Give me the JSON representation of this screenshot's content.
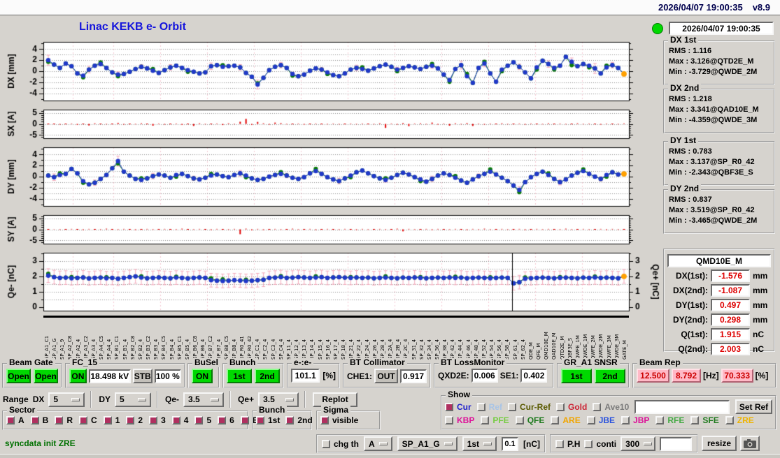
{
  "titlebar": {
    "datetime": "2026/04/07 19:00:35",
    "version": "v8.9"
  },
  "header": {
    "title": "Linac KEKB e- Orbit",
    "status_datetime": "2026/04/07 19:00:35"
  },
  "stats": [
    {
      "title": "DX 1st",
      "rows": [
        "RMS :  1.116",
        "Max :  3.126@QTD2E_M",
        "Min :  -3.729@QWDE_2M"
      ]
    },
    {
      "title": "DX 2nd",
      "rows": [
        "RMS :  1.218",
        "Max :  3.341@QAD10E_M",
        "Min :  -4.359@QWDE_3M"
      ]
    },
    {
      "title": "DY 1st",
      "rows": [
        "RMS :  0.783",
        "Max :  3.137@SP_R0_42",
        "Min :  -2.343@QBF3E_S"
      ]
    },
    {
      "title": "DY 2nd",
      "rows": [
        "RMS :  0.837",
        "Max :  3.519@SP_R0_42",
        "Min :  -3.465@QWDE_2M"
      ]
    }
  ],
  "monitor": {
    "title": "QMD10E_M",
    "rows": [
      {
        "label": "DX(1st):",
        "value": "-1.576",
        "unit": "mm"
      },
      {
        "label": "DX(2nd):",
        "value": "-1.087",
        "unit": "mm"
      },
      {
        "label": "DY(1st):",
        "value": "0.497",
        "unit": "mm"
      },
      {
        "label": "DY(2nd):",
        "value": "0.298",
        "unit": "mm"
      },
      {
        "label": "Q(1st):",
        "value": "1.915",
        "unit": "nC"
      },
      {
        "label": "Q(2nd):",
        "value": "2.003",
        "unit": "nC"
      }
    ]
  },
  "plot_vlines": [
    0.05,
    0.12,
    0.2,
    0.28,
    0.36,
    0.44,
    0.52,
    0.6,
    0.68,
    0.76,
    0.84,
    0.92
  ],
  "chart_data": {
    "dx": {
      "type": "scatter",
      "ylabel": "DX [mm]",
      "ylim": [
        -5.3,
        5.3
      ],
      "yticks": [
        4,
        2,
        0,
        -2,
        -4
      ],
      "grid": [
        -4,
        -3,
        -2,
        -1,
        0,
        1,
        2,
        3,
        4
      ],
      "minor": 1,
      "orange_last": true,
      "values": [
        2.0,
        1.2,
        0.6,
        1.4,
        0.9,
        -0.4,
        -0.8,
        0.3,
        1.0,
        1.3,
        0.6,
        -0.2,
        -0.6,
        -0.5,
        -0.1,
        0.4,
        0.8,
        0.5,
        0.1,
        -0.3,
        0.2,
        0.7,
        1.0,
        0.6,
        0.2,
        -0.1,
        -0.4,
        -0.2,
        0.9,
        1.1,
        0.8,
        0.9,
        1.0,
        0.7,
        -0.3,
        -1.0,
        -2.4,
        -1.2,
        0.2,
        0.8,
        1.1,
        0.6,
        -0.5,
        -0.9,
        -0.6,
        0.1,
        0.5,
        0.3,
        -0.2,
        -0.7,
        -0.9,
        -0.4,
        0.3,
        0.6,
        0.4,
        0.1,
        0.5,
        0.9,
        1.2,
        0.8,
        0.3,
        0.6,
        0.9,
        0.7,
        0.4,
        0.8,
        1.0,
        0.5,
        -0.6,
        -1.6,
        0.4,
        1.1,
        -0.9,
        -2.1,
        0.6,
        1.4,
        -0.4,
        -1.9,
        0.3,
        1.0,
        1.6,
        0.8,
        -0.2,
        -1.3,
        0.7,
        1.9,
        1.3,
        0.6,
        1.0,
        2.6,
        1.7,
        0.9,
        1.3,
        1.0,
        0.5,
        -0.4,
        0.7,
        1.1,
        0.6,
        -0.5
      ],
      "green_offsets": [
        [
          0,
          -0.3
        ],
        [
          6,
          -0.3
        ],
        [
          9,
          0.3
        ],
        [
          12,
          -0.3
        ],
        [
          18,
          0.3
        ],
        [
          24,
          -0.3
        ],
        [
          30,
          0.3
        ],
        [
          36,
          0.2
        ],
        [
          42,
          -0.3
        ],
        [
          48,
          -0.3
        ],
        [
          54,
          0.3
        ],
        [
          60,
          -0.3
        ],
        [
          66,
          0.3
        ],
        [
          69,
          -0.3
        ],
        [
          72,
          0.4
        ],
        [
          75,
          0.3
        ],
        [
          78,
          -0.3
        ],
        [
          84,
          -0.4
        ],
        [
          87,
          -0.3
        ],
        [
          90,
          -0.6
        ],
        [
          93,
          -0.3
        ],
        [
          96,
          0.3
        ]
      ],
      "errorbars": [
        [
          0,
          0.9
        ],
        [
          7,
          0.6
        ],
        [
          12,
          0.5
        ],
        [
          16,
          0.4
        ],
        [
          21,
          0.5
        ],
        [
          28,
          0.6
        ],
        [
          33,
          0.5
        ],
        [
          36,
          0.8
        ],
        [
          40,
          0.5
        ],
        [
          47,
          0.4
        ],
        [
          53,
          0.5
        ],
        [
          60,
          0.4
        ],
        [
          66,
          0.5
        ],
        [
          71,
          0.7
        ],
        [
          75,
          0.6
        ],
        [
          81,
          0.5
        ],
        [
          86,
          0.6
        ],
        [
          90,
          0.7
        ],
        [
          94,
          0.9
        ],
        [
          97,
          0.5
        ]
      ]
    },
    "sx": {
      "type": "bar",
      "ylabel": "SX [A]",
      "ylim": [
        -6.5,
        6.5
      ],
      "yticks": [
        5,
        0,
        -5
      ],
      "grid": [
        5,
        0,
        -5
      ],
      "minor": 1,
      "values": [
        0,
        0,
        -0.3,
        0,
        0.2,
        -0.4,
        0,
        -0.7,
        0.3,
        0,
        -0.2,
        0,
        0.5,
        -0.3,
        0,
        -0.2,
        0.3,
        0,
        -0.8,
        0.2,
        -0.3,
        0,
        0.2,
        -0.4,
        0,
        -0.9,
        0.3,
        -0.2,
        0,
        0.2,
        -0.5,
        0.3,
        -0.2,
        1.0,
        2.3,
        -0.4,
        0.9,
        0.3,
        -0.3,
        0.6,
        0.4,
        -0.2,
        0,
        0.2,
        -0.3,
        0,
        0.2,
        0,
        -0.2,
        0.2,
        -0.2,
        0,
        0.2,
        -0.2,
        0.2,
        0,
        -0.2,
        0.3,
        -1.8,
        0.2,
        -0.3,
        0.4,
        -1.0,
        0.2,
        0.3,
        -0.2,
        0.6,
        -0.3,
        0.2,
        -0.8,
        0.3,
        -0.2,
        0.4,
        -0.9,
        0.2,
        -0.3,
        0.2,
        0,
        0.3,
        -0.2,
        0,
        0.2,
        -0.3,
        0.2,
        0,
        -0.2,
        0.3,
        0,
        0.2,
        -0.2,
        0,
        0.3,
        -0.2,
        0.2,
        0,
        -0.3,
        0.2,
        0,
        -0.2,
        0.2
      ]
    },
    "dy": {
      "type": "scatter",
      "ylabel": "DY [mm]",
      "ylim": [
        -5.3,
        5.3
      ],
      "yticks": [
        4,
        2,
        0,
        -2,
        -4
      ],
      "grid": [
        -4,
        -3,
        -2,
        -1,
        0,
        1,
        2,
        3,
        4
      ],
      "minor": 1,
      "orange_last": true,
      "values": [
        0.2,
        -0.1,
        0.3,
        0.5,
        1.4,
        0.6,
        -0.8,
        -1.4,
        -1.1,
        -0.4,
        0.3,
        1.5,
        2.8,
        0.9,
        0.2,
        -0.4,
        -0.6,
        -0.3,
        0.1,
        0.4,
        0.2,
        -0.2,
        0.3,
        0.5,
        0.1,
        -0.3,
        -0.5,
        -0.2,
        0.2,
        0.4,
        0.1,
        -0.1,
        0.3,
        0.6,
        0.2,
        -0.3,
        -0.6,
        -0.4,
        0.0,
        0.3,
        0.5,
        0.2,
        -0.2,
        -0.4,
        -0.1,
        0.6,
        1.0,
        0.5,
        -0.1,
        -0.5,
        -0.8,
        -0.3,
        0.2,
        0.8,
        1.1,
        0.6,
        0.1,
        -0.3,
        -0.6,
        -0.2,
        0.3,
        0.7,
        0.4,
        -0.1,
        -0.5,
        -0.9,
        -0.4,
        0.2,
        0.6,
        0.3,
        -0.2,
        -0.7,
        -1.1,
        -0.5,
        0.1,
        0.5,
        0.9,
        0.4,
        -0.2,
        -0.8,
        -1.6,
        -2.4,
        -1.0,
        -0.1,
        0.5,
        0.9,
        0.3,
        -0.4,
        -1.0,
        -0.5,
        0.2,
        0.7,
        1.0,
        0.5,
        0.0,
        -0.4,
        0.3,
        0.8,
        0.4,
        0.5
      ],
      "green_offsets": [
        [
          2,
          0.3
        ],
        [
          6,
          -0.3
        ],
        [
          12,
          -0.4
        ],
        [
          16,
          0.3
        ],
        [
          22,
          -0.3
        ],
        [
          28,
          0.3
        ],
        [
          34,
          -0.3
        ],
        [
          40,
          0.3
        ],
        [
          46,
          0.4
        ],
        [
          52,
          -0.3
        ],
        [
          58,
          0.3
        ],
        [
          64,
          -0.3
        ],
        [
          70,
          0.3
        ],
        [
          76,
          0.4
        ],
        [
          81,
          -0.4
        ],
        [
          86,
          0.3
        ],
        [
          92,
          0.3
        ],
        [
          96,
          -0.3
        ]
      ],
      "errorbars": [
        [
          1,
          0.6
        ],
        [
          8,
          0.5
        ],
        [
          12,
          0.9
        ],
        [
          18,
          0.5
        ],
        [
          25,
          0.4
        ],
        [
          33,
          0.5
        ],
        [
          41,
          0.4
        ],
        [
          50,
          0.5
        ],
        [
          58,
          0.4
        ],
        [
          66,
          0.5
        ],
        [
          74,
          0.4
        ],
        [
          81,
          0.6
        ],
        [
          88,
          0.5
        ],
        [
          95,
          0.4
        ]
      ]
    },
    "sy": {
      "type": "bar",
      "ylabel": "SY [A]",
      "ylim": [
        -6.5,
        6.5
      ],
      "yticks": [
        5,
        0,
        -5
      ],
      "grid": [
        5,
        0,
        -5
      ],
      "minor": 1,
      "values": [
        0,
        0.1,
        -0.2,
        0,
        0.2,
        0,
        -0.3,
        0.2,
        0,
        -0.2,
        0.3,
        0,
        -0.2,
        0.2,
        0,
        -0.3,
        0,
        0.2,
        -0.2,
        0,
        0.2,
        0,
        -0.2,
        0.3,
        0,
        -0.2,
        0.2,
        0,
        -0.3,
        0.2,
        0,
        -0.2,
        0.2,
        -2.2,
        0.3,
        -0.4,
        0.2,
        -0.3,
        0,
        0.2,
        -0.2,
        0,
        0.3,
        -0.2,
        0,
        0.2,
        -0.3,
        0,
        0.2,
        0,
        -0.2,
        0.2,
        0,
        -0.3,
        0.2,
        -0.2,
        0,
        0.2,
        -0.2,
        0,
        0.3,
        -0.9,
        0.2,
        -0.2,
        0,
        0.2,
        -0.3,
        0.2,
        0,
        -0.2,
        0.2,
        0,
        -0.3,
        0.2,
        -0.2,
        0.3,
        -0.2,
        0,
        0.2,
        -0.2,
        0,
        0.2,
        -0.3,
        0,
        0.2,
        -0.2,
        0.2,
        0,
        -0.2,
        0.3,
        -0.2,
        0,
        0.2,
        -0.2,
        0,
        0.2,
        -0.3,
        0.2,
        -0.2,
        0
      ]
    },
    "qe": {
      "type": "scatter",
      "ylabel": "Qe- [nC]",
      "ylabel_right": "Qe+ [nC]",
      "ylim": [
        -0.25,
        3.55
      ],
      "yticks": [
        3,
        2,
        1,
        0
      ],
      "grid": [
        0.5,
        1,
        1.5,
        2,
        2.5,
        3
      ],
      "minor": 0.5,
      "right_labels": true,
      "err_half": 0.45,
      "cursor_frac": 0.8,
      "orange_last": true,
      "values": [
        2.05,
        1.95,
        1.9,
        1.92,
        1.88,
        1.9,
        1.93,
        1.87,
        1.9,
        1.92,
        1.88,
        1.9,
        1.85,
        1.9,
        1.95,
        2.0,
        1.92,
        1.88,
        1.9,
        1.93,
        1.9,
        1.88,
        1.92,
        1.9,
        1.87,
        1.9,
        1.93,
        1.9,
        1.75,
        1.72,
        1.7,
        1.72,
        1.75,
        1.73,
        1.7,
        1.72,
        1.75,
        1.78,
        1.9,
        1.92,
        1.95,
        1.9,
        1.92,
        1.95,
        1.93,
        1.9,
        1.92,
        1.95,
        1.9,
        1.93,
        1.95,
        1.92,
        1.9,
        1.93,
        1.9,
        1.92,
        1.88,
        1.9,
        1.92,
        1.9,
        1.88,
        1.92,
        1.9,
        1.93,
        1.9,
        1.88,
        1.9,
        1.92,
        1.9,
        1.93,
        1.9,
        1.92,
        1.88,
        1.9,
        1.92,
        1.9,
        1.88,
        1.9,
        1.92,
        1.9,
        1.55,
        1.62,
        1.85,
        1.88,
        1.9,
        1.92,
        1.9,
        1.88,
        1.9,
        1.92,
        1.9,
        1.88,
        1.92,
        1.9,
        1.93,
        1.9,
        1.92,
        1.9,
        1.88,
        2.0
      ],
      "green_offsets": [
        [
          0,
          0.12
        ],
        [
          4,
          0.08
        ],
        [
          10,
          0.06
        ],
        [
          16,
          0.08
        ],
        [
          22,
          0.06
        ],
        [
          28,
          0.12
        ],
        [
          30,
          0.1
        ],
        [
          34,
          0.08
        ],
        [
          40,
          0.06
        ],
        [
          46,
          0.08
        ],
        [
          52,
          0.06
        ],
        [
          58,
          0.08
        ],
        [
          64,
          0.06
        ],
        [
          70,
          0.08
        ],
        [
          76,
          0.06
        ],
        [
          82,
          0.08
        ],
        [
          88,
          0.06
        ],
        [
          94,
          0.06
        ]
      ]
    }
  },
  "xaxis_labels": [
    "SP_A1_C1",
    "SP_A1_G",
    "SP_A1_9",
    "SP_A2_C8",
    "SP_A2_4",
    "SP_A3_C2",
    "SP_A3_4",
    "SP_A4_C5",
    "SP_A4_4",
    "SP_B1_C1",
    "SP_B1_4",
    "SP_B2_C8",
    "SP_B2_4",
    "SP_B3_C2",
    "SP_B3_4",
    "SP_B4_C5",
    "SP_B4_4",
    "SP_B5_C1",
    "SP_B5_4",
    "SP_B6_C8",
    "SP_B6_4",
    "SP_B7_C2",
    "SP_B7_4",
    "SP_B8_C5",
    "SP_B8_4",
    "SP_R0_41",
    "SP_R0_42",
    "SP_C1_4",
    "SP_C2_4",
    "SP_C3_4",
    "SP_C4_4",
    "SP_11_4",
    "SP_12_4",
    "SP_13_4",
    "SP_14_4",
    "SP_15_4",
    "SP_16_4",
    "SP_17_4",
    "SP_18_4",
    "SP_21_4",
    "SP_22_4",
    "SP_24_4",
    "SP_26_4",
    "SP_28_4",
    "SP_2A_4",
    "SP_2B_4",
    "SP_2C_4",
    "SP_31_4",
    "SP_32_4",
    "SP_34_4",
    "SP_36_4",
    "SP_38_4",
    "SP_42_4",
    "SP_44_4",
    "SP_46_4",
    "SP_48_4",
    "SP_52_4",
    "SP_54_4",
    "SP_56_4",
    "SP_58_4",
    "SP_61_4",
    "SP_62_4",
    "QDE_M",
    "QFE_M",
    "QMD10E_M",
    "QAD10E_M",
    "QTD2E_M",
    "QBF3E_S",
    "QWFE_1M",
    "QWDE_1M",
    "QWFE_2M",
    "QWDE_2M",
    "QWFE_3M",
    "QWDE_3M",
    "GATE_M"
  ],
  "row1": {
    "beam_gate": {
      "legend": "Beam Gate",
      "buttons": [
        "Open",
        "Open"
      ]
    },
    "fc15": {
      "legend": "FC_15",
      "on": "ON",
      "kv": "18.498 kV",
      "stb": "STB",
      "pct": "100 %"
    },
    "busel": {
      "legend": "BuSel",
      "on": "ON"
    },
    "bunch": {
      "legend": "Bunch",
      "b1": "1st",
      "b2": "2nd"
    },
    "ee": {
      "legend": "e-:e-",
      "value": "101.1",
      "unit": "[%]"
    },
    "bt_collimator": {
      "legend": "BT Collimator",
      "che1_label": "CHE1:",
      "che1_state": "OUT",
      "che1_value": "0.917"
    },
    "bt_lossmonitor": {
      "legend": "BT LossMonitor",
      "qxd2e_label": "QXD2E:",
      "qxd2e_value": "0.006",
      "se1_label": "SE1:",
      "se1_value": "0.402"
    },
    "gr_a1": {
      "legend": "GR_A1 SNSR",
      "b1": "1st",
      "b2": "2nd"
    },
    "beam_rep": {
      "legend": "Beam Rep",
      "v1": "12.500",
      "v2": "8.792",
      "hz": "[Hz]",
      "v3": "70.333",
      "pct": "[%]"
    }
  },
  "range_bar": {
    "label": "Range",
    "dx_label": "DX",
    "dx": "5",
    "dy_label": "DY",
    "dy": "5",
    "qem_label": "Qe-",
    "qem": "3.5",
    "qep_label": "Qe+",
    "qep": "3.5",
    "replot": "Replot"
  },
  "sector": {
    "legend": "Sector",
    "items": [
      "A",
      "B",
      "R",
      "C",
      "1",
      "2",
      "3",
      "4",
      "5",
      "6",
      "BT"
    ]
  },
  "bunch2": {
    "legend": "Bunch",
    "items": [
      "1st",
      "2nd"
    ]
  },
  "sigma": {
    "legend": "Sigma",
    "items": [
      "visible"
    ]
  },
  "show": {
    "legend": "Show",
    "row1": [
      {
        "label": "Cur",
        "color": "#2222cc",
        "checked": true
      },
      {
        "label": "Ref",
        "color": "#a8c4e6",
        "checked": false
      },
      {
        "label": "Cur-Ref",
        "color": "#5a5a00",
        "checked": false
      },
      {
        "label": "Gold",
        "color": "#cc2233",
        "checked": false
      },
      {
        "label": "Ave10",
        "color": "#7a7a7a",
        "checked": false
      }
    ],
    "ref_input": "",
    "set_ref": "Set Ref",
    "row2": [
      {
        "label": "KBP",
        "color": "#dd1199",
        "checked": false
      },
      {
        "label": "PFE",
        "color": "#77cc44",
        "checked": false
      },
      {
        "label": "QFE",
        "color": "#1e7a1e",
        "checked": false
      },
      {
        "label": "ARE",
        "color": "#f0a500",
        "checked": false
      },
      {
        "label": "JBE",
        "color": "#2a52dd",
        "checked": false
      },
      {
        "label": "JBP",
        "color": "#dd1199",
        "checked": false
      },
      {
        "label": "RFE",
        "color": "#44aa44",
        "checked": false
      },
      {
        "label": "SFE",
        "color": "#1e7a1e",
        "checked": false
      },
      {
        "label": "ZRE",
        "color": "#eeb400",
        "checked": false
      }
    ]
  },
  "statusbar": {
    "message": "syncdata init ZRE",
    "chg_th": "chg th",
    "th_sel": "A",
    "bpm_sel": "SP_A1_G",
    "bunch_sel": "1st",
    "thr_value": "0.1",
    "thr_unit": "[nC]",
    "ph": "P.H",
    "conti": "conti",
    "navg": "300",
    "extra_input": "",
    "resize": "resize"
  },
  "colors": {
    "blue": "#2038c8",
    "green": "#0b7b0b",
    "red": "#e00000",
    "pink": "#f4aabb",
    "orange": "#ffa000",
    "button_green": "#00d800",
    "check_maroon": "#b03060"
  }
}
